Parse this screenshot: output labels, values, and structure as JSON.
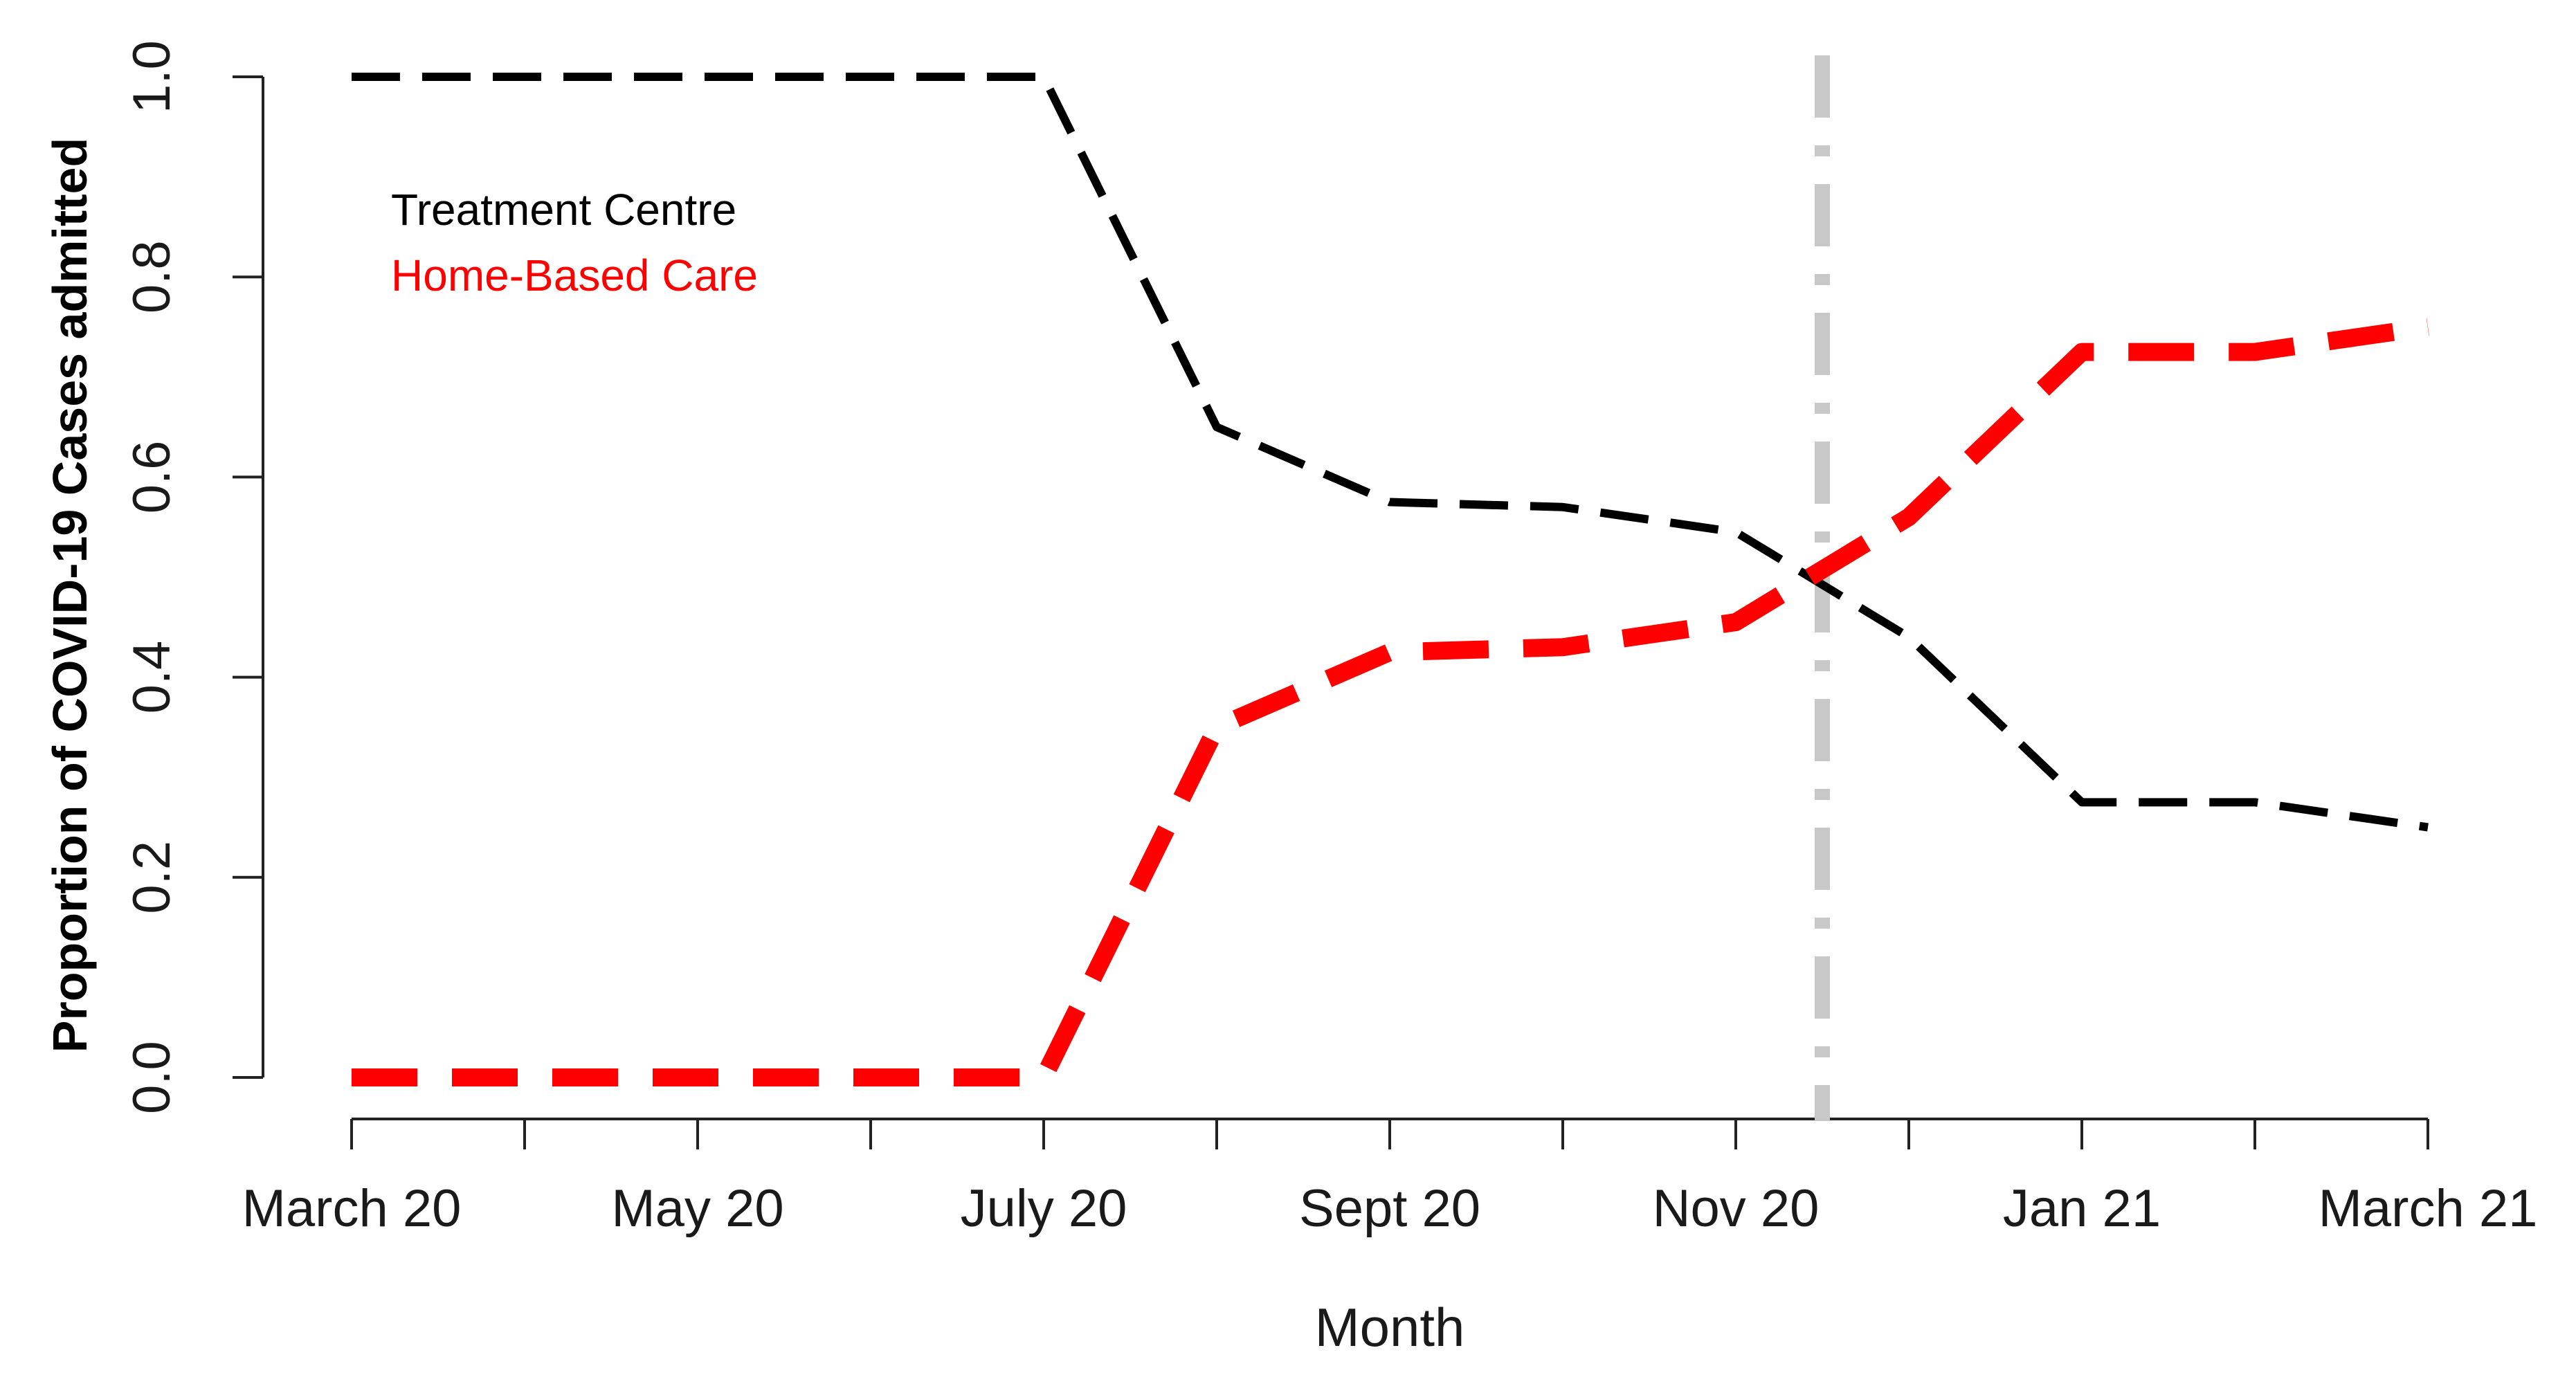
{
  "chart_data": {
    "type": "line",
    "title": "",
    "xlabel": "Month",
    "ylabel": "Proportion of COVID-19 Cases admitted",
    "x_ticks_count": 13,
    "x_tick_labels": [
      {
        "index": 0,
        "label": "March 20"
      },
      {
        "index": 2,
        "label": "May 20"
      },
      {
        "index": 4,
        "label": "July 20"
      },
      {
        "index": 6,
        "label": "Sept 20"
      },
      {
        "index": 8,
        "label": "Nov 20"
      },
      {
        "index": 10,
        "label": "Jan 21"
      },
      {
        "index": 12,
        "label": "March 21"
      }
    ],
    "y_ticks": [
      "0.0",
      "0.2",
      "0.4",
      "0.6",
      "0.8",
      "1.0"
    ],
    "ylim": [
      0,
      1
    ],
    "grid": false,
    "legend_position": "top-left",
    "series": [
      {
        "name": "Treatment Centre",
        "color": "#000000",
        "style": "dashed",
        "x": [
          0,
          1,
          2,
          3,
          4,
          5,
          6,
          7,
          8,
          9,
          10,
          11,
          12
        ],
        "values": [
          1.0,
          1.0,
          1.0,
          1.0,
          1.0,
          0.65,
          0.575,
          0.57,
          0.545,
          0.44,
          0.275,
          0.275,
          0.25
        ]
      },
      {
        "name": "Home-Based Care",
        "color": "#ff0000",
        "style": "dashed",
        "x": [
          0,
          1,
          2,
          3,
          4,
          5,
          6,
          7,
          8,
          9,
          10,
          11,
          12
        ],
        "values": [
          0.0,
          0.0,
          0.0,
          0.0,
          0.0,
          0.35,
          0.425,
          0.43,
          0.455,
          0.56,
          0.725,
          0.725,
          0.75
        ]
      }
    ],
    "reference_line": {
      "x": 8.5,
      "color": "#c8c8c8",
      "style": "dot-dash"
    }
  }
}
